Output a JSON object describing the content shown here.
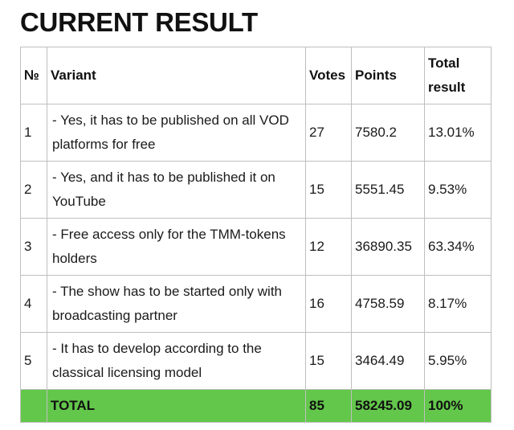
{
  "title": "CURRENT RESULT",
  "table": {
    "headers": {
      "num": "№",
      "variant": "Variant",
      "votes": "Votes",
      "points": "Points",
      "total": "Total result"
    },
    "rows": [
      {
        "num": "1",
        "variant": "- Yes, it has to be published on all VOD platforms for free",
        "votes": "27",
        "points": "7580.2",
        "total": "13.01%"
      },
      {
        "num": "2",
        "variant": "- Yes, and it has to be published it on YouTube",
        "votes": "15",
        "points": "5551.45",
        "total": "9.53%"
      },
      {
        "num": "3",
        "variant": "- Free access only for the TMM-tokens holders",
        "votes": "12",
        "points": "36890.35",
        "total": "63.34%"
      },
      {
        "num": "4",
        "variant": "- The show has to be started only with broadcasting partner",
        "votes": "16",
        "points": "4758.59",
        "total": "8.17%"
      },
      {
        "num": "5",
        "variant": "- It has to develop according to the classical licensing model",
        "votes": "15",
        "points": "3464.49",
        "total": "5.95%"
      }
    ],
    "footer": {
      "num": "",
      "variant": "TOTAL",
      "votes": "85",
      "points": "58245.09",
      "total": "100%"
    }
  },
  "colors": {
    "total_row_bg": "#63c74b",
    "border": "#bfbfbf"
  }
}
